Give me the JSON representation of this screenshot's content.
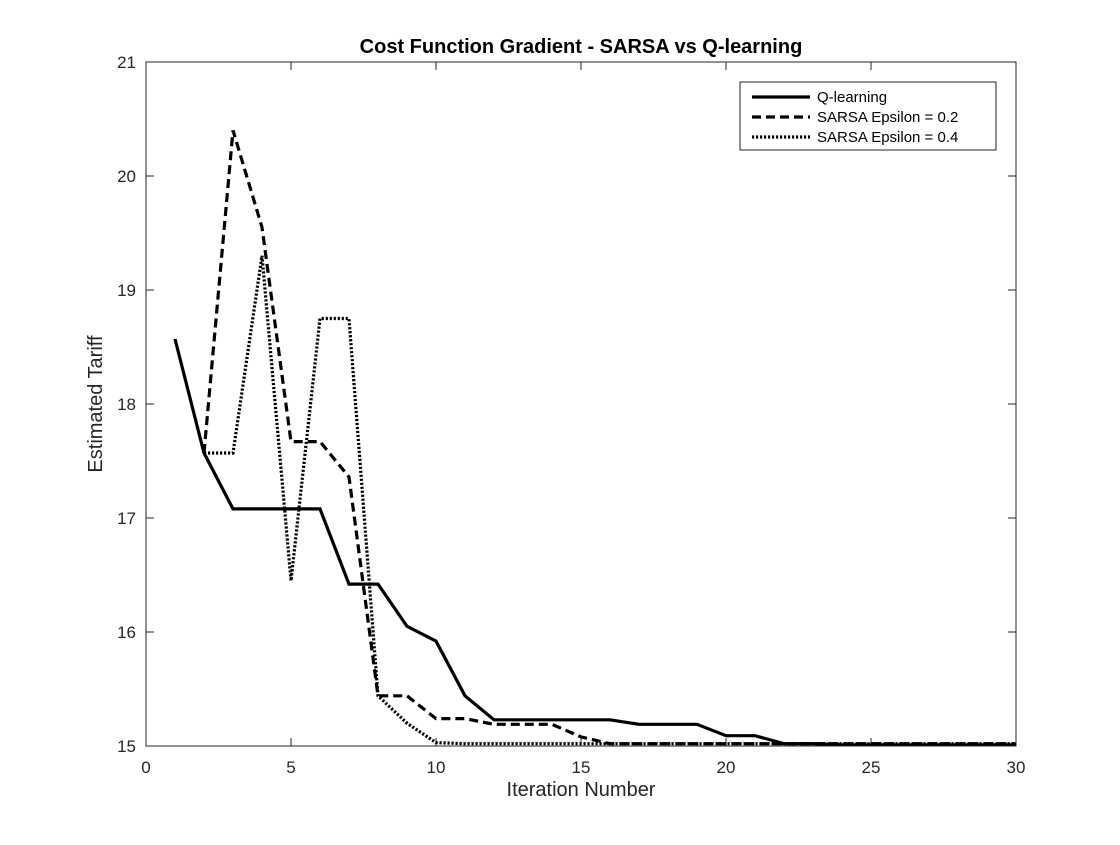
{
  "chart_data": {
    "type": "line",
    "title": "Cost Function Gradient - SARSA vs Q-learning",
    "xlabel": "Iteration Number",
    "ylabel": "Estimated Tariff",
    "xlim": [
      0,
      30
    ],
    "ylim": [
      15,
      21
    ],
    "xticks": [
      0,
      5,
      10,
      15,
      20,
      25,
      30
    ],
    "yticks": [
      15,
      16,
      17,
      18,
      19,
      20,
      21
    ],
    "grid": false,
    "legend_position": "top-right",
    "series": [
      {
        "name": "Q-learning",
        "style": "solid",
        "color": "#000000",
        "x": [
          1,
          2,
          3,
          4,
          5,
          6,
          7,
          8,
          9,
          10,
          11,
          12,
          13,
          14,
          15,
          16,
          17,
          18,
          19,
          20,
          21,
          22,
          23,
          24,
          25,
          26,
          27,
          28,
          29,
          30
        ],
        "y": [
          18.57,
          17.57,
          17.08,
          17.08,
          17.08,
          17.08,
          16.42,
          16.42,
          16.05,
          15.92,
          15.44,
          15.23,
          15.23,
          15.23,
          15.23,
          15.23,
          15.19,
          15.19,
          15.19,
          15.09,
          15.09,
          15.02,
          15.02,
          15.01,
          15.01,
          15.01,
          15.01,
          15.01,
          15.01,
          15.01
        ]
      },
      {
        "name": "SARSA Epsilon = 0.2",
        "style": "dashed",
        "color": "#000000",
        "x": [
          2,
          3,
          4,
          5,
          6,
          7,
          8,
          9,
          10,
          11,
          12,
          13,
          14,
          15,
          16,
          17,
          18,
          19,
          20,
          21,
          22,
          23,
          24,
          25,
          26,
          27,
          28,
          29,
          30
        ],
        "y": [
          17.57,
          20.4,
          19.55,
          17.67,
          17.67,
          17.36,
          15.44,
          15.44,
          15.24,
          15.24,
          15.19,
          15.19,
          15.19,
          15.08,
          15.02,
          15.02,
          15.02,
          15.02,
          15.02,
          15.02,
          15.02,
          15.02,
          15.02,
          15.02,
          15.02,
          15.02,
          15.02,
          15.02,
          15.02
        ]
      },
      {
        "name": "SARSA Epsilon = 0.4",
        "style": "dotted",
        "color": "#000000",
        "x": [
          2,
          3,
          4,
          5,
          6,
          7,
          8,
          9,
          10,
          11,
          12,
          13,
          14,
          15,
          16,
          17,
          18,
          19,
          20,
          21,
          22,
          23,
          24,
          25,
          26,
          27,
          28,
          29,
          30
        ],
        "y": [
          17.57,
          17.57,
          19.3,
          16.45,
          18.75,
          18.75,
          15.44,
          15.2,
          15.03,
          15.02,
          15.02,
          15.02,
          15.02,
          15.02,
          15.02,
          15.02,
          15.02,
          15.02,
          15.02,
          15.02,
          15.02,
          15.02,
          15.02,
          15.02,
          15.02,
          15.02,
          15.02,
          15.02,
          15.02
        ]
      }
    ]
  }
}
